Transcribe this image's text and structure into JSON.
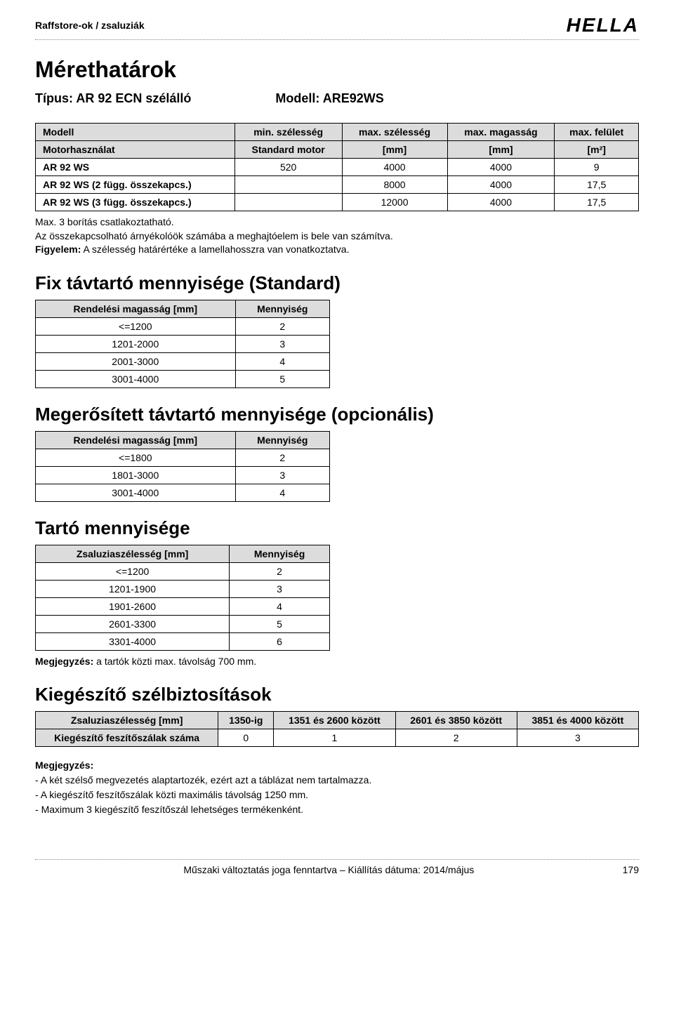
{
  "header": {
    "breadcrumb": "Raffstore-ok / zsaluziák",
    "logo": "HELLA"
  },
  "title": "Mérethatárok",
  "subtitle": {
    "type_label": "Típus: AR 92 ECN szélálló",
    "model_label": "Modell: ARE92WS"
  },
  "table1": {
    "columns": [
      "Modell",
      "min. szélesség",
      "max. szélesség",
      "max. magasság",
      "max. felület"
    ],
    "unit_row": [
      "Motorhasználat",
      "Standard motor",
      "[mm]",
      "[mm]",
      "[m²]"
    ],
    "rows": [
      [
        "AR 92 WS",
        "520",
        "4000",
        "4000",
        "9"
      ],
      [
        "AR 92 WS (2 függ. összekapcs.)",
        "",
        "8000",
        "4000",
        "17,5"
      ],
      [
        "AR 92 WS (3 függ. összekapcs.)",
        "",
        "12000",
        "4000",
        "17,5"
      ]
    ]
  },
  "notes1": {
    "line1": "Max. 3 borítás csatlakoztatható.",
    "line2": "Az összekapcsolható árnyékolóök számába a meghajtóelem is bele van számítva.",
    "line3_bold": "Figyelem:",
    "line3_rest": " A szélesség határértéke a lamellahosszra van vonatkoztatva."
  },
  "section_fix": {
    "title": "Fix távtartó mennyisége (Standard)",
    "columns": [
      "Rendelési magasság [mm]",
      "Mennyiség"
    ],
    "rows": [
      [
        "<=1200",
        "2"
      ],
      [
        "1201-2000",
        "3"
      ],
      [
        "2001-3000",
        "4"
      ],
      [
        "3001-4000",
        "5"
      ]
    ]
  },
  "section_reinforced": {
    "title": "Megerősített távtartó mennyisége (opcionális)",
    "columns": [
      "Rendelési magasság [mm]",
      "Mennyiség"
    ],
    "rows": [
      [
        "<=1800",
        "2"
      ],
      [
        "1801-3000",
        "3"
      ],
      [
        "3001-4000",
        "4"
      ]
    ]
  },
  "section_holder": {
    "title": "Tartó mennyisége",
    "columns": [
      "Zsaluziaszélesség [mm]",
      "Mennyiség"
    ],
    "rows": [
      [
        "<=1200",
        "2"
      ],
      [
        "1201-1900",
        "3"
      ],
      [
        "1901-2600",
        "4"
      ],
      [
        "2601-3300",
        "5"
      ],
      [
        "3301-4000",
        "6"
      ]
    ],
    "note_bold": "Megjegyzés:",
    "note_rest": " a tartók közti max. távolság 700 mm."
  },
  "section_wind": {
    "title": "Kiegészítő szélbiztosítások",
    "columns": [
      "Zsaluziaszélesség [mm]",
      "1350-ig",
      "1351 és 2600 között",
      "2601 és 3850 között",
      "3851 és 4000 között"
    ],
    "row_label": "Kiegészítő feszítőszálak száma",
    "row_values": [
      "0",
      "1",
      "2",
      "3"
    ]
  },
  "final_notes": {
    "heading": "Megjegyzés:",
    "items": [
      "A két szélső megvezetés alaptartozék, ezért azt a táblázat nem tartalmazza.",
      "A kiegészítő feszítőszálak közti maximális távolság 1250 mm.",
      "Maximum 3 kiegészítő feszítőszál lehetséges termékenként."
    ]
  },
  "footer": {
    "center": "Műszaki változtatás joga fenntartva – Kiállítás dátuma: 2014/május",
    "page": "179"
  }
}
